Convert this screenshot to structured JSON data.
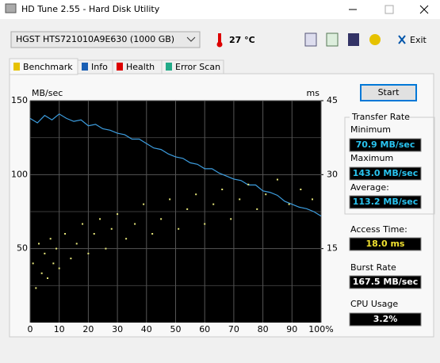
{
  "window": {
    "title": "HD Tune 2.55 - Hard Disk Utility"
  },
  "toolbar": {
    "drive": "HGST    HTS721010A9E630 (1000 GB)",
    "temperature": "27 °C",
    "exit": "Exit"
  },
  "tabs": [
    "Benchmark",
    "Info",
    "Health",
    "Error Scan"
  ],
  "start": "Start",
  "results": {
    "transfer_rate": "Transfer Rate",
    "minimum_label": "Minimum",
    "minimum": "70.9 MB/sec",
    "maximum_label": "Maximum",
    "maximum": "143.0 MB/sec",
    "average_label": "Average:",
    "average": "113.2 MB/sec",
    "access_time_label": "Access Time:",
    "access_time": "18.0 ms",
    "burst_rate_label": "Burst Rate",
    "burst_rate": "167.5 MB/sec",
    "cpu_usage_label": "CPU Usage",
    "cpu_usage": "3.2%"
  },
  "chart_data": {
    "type": "line",
    "y_label": "MB/sec",
    "y2_label": "ms",
    "xlim": [
      0,
      100
    ],
    "xticks": [
      0,
      10,
      20,
      30,
      40,
      50,
      60,
      70,
      80,
      90,
      {
        "value": 100,
        "label": "100%"
      }
    ],
    "ylim": [
      0,
      150
    ],
    "yticks": [
      50,
      100,
      150
    ],
    "minor_yticks": [
      25,
      75,
      125
    ],
    "y2lim": [
      0,
      45
    ],
    "y2ticks": [
      15,
      30,
      45
    ],
    "grid": true,
    "x": [
      0,
      2.5,
      5,
      7.5,
      10,
      12.5,
      15,
      17.5,
      20,
      22.5,
      25,
      27.5,
      30,
      32.5,
      35,
      37.5,
      40,
      42.5,
      45,
      47.5,
      50,
      52.5,
      55,
      57.5,
      60,
      62.5,
      65,
      67.5,
      70,
      72.5,
      75,
      77.5,
      80,
      82.5,
      85,
      87.5,
      90,
      92.5,
      95,
      97.5,
      100
    ],
    "series": [
      {
        "color": "#3d9ee0",
        "values": [
          138,
          135,
          140,
          137,
          141,
          138,
          136,
          137,
          133,
          134,
          131,
          130,
          128,
          127,
          124,
          124,
          121,
          118,
          117,
          114,
          112,
          111,
          108,
          107,
          104,
          104,
          101,
          99,
          97,
          96,
          93,
          93,
          89,
          88,
          86,
          82,
          80,
          78,
          77,
          75,
          72
        ]
      },
      {
        "type": "scatter",
        "axis": "y2",
        "color": "#e6e67a",
        "x": [
          1,
          2,
          3,
          4,
          5,
          6,
          7,
          8,
          9,
          10,
          12,
          14,
          16,
          18,
          20,
          22,
          24,
          26,
          28,
          30,
          33,
          36,
          39,
          42,
          45,
          48,
          51,
          54,
          57,
          60,
          63,
          66,
          69,
          72,
          75,
          78,
          81,
          85,
          89,
          93,
          97
        ],
        "values": [
          12,
          7,
          16,
          10,
          14,
          9,
          17,
          12,
          15,
          11,
          18,
          13,
          16,
          20,
          14,
          18,
          21,
          15,
          19,
          22,
          17,
          20,
          24,
          18,
          21,
          25,
          19,
          23,
          26,
          20,
          24,
          27,
          21,
          25,
          28,
          23,
          26,
          29,
          24,
          27,
          25
        ]
      }
    ]
  }
}
